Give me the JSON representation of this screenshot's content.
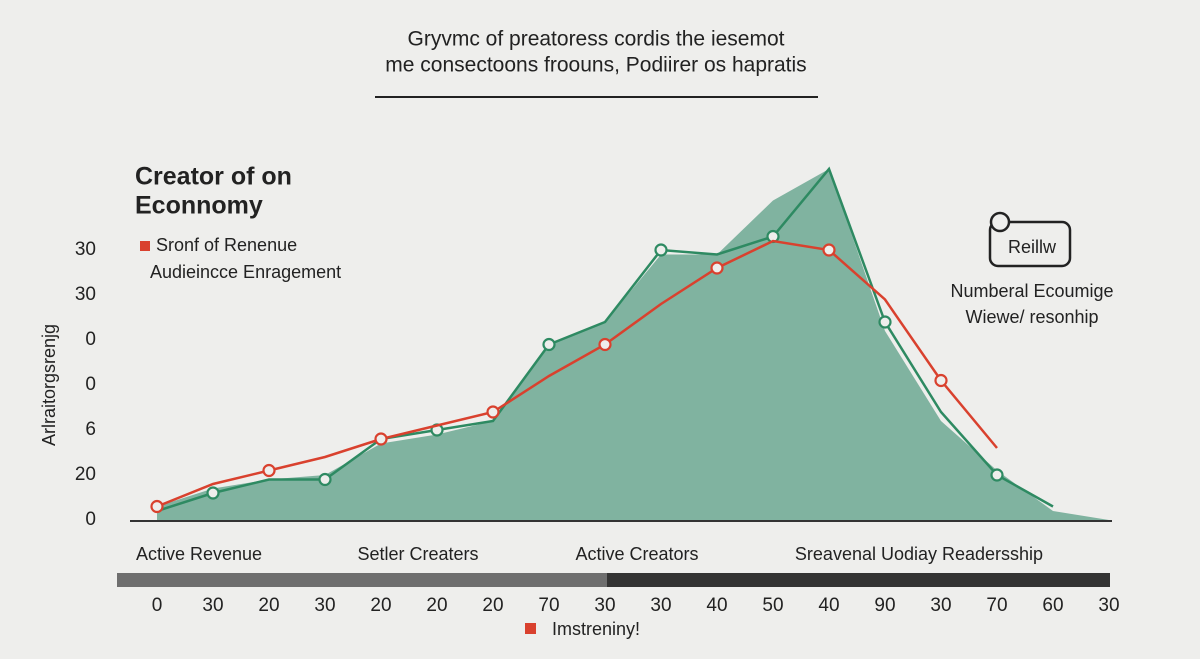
{
  "chart_data": {
    "type": "line-area",
    "subtitle": [
      "Gryvmc of preatoress cordis the iesemot",
      "me consectoons froouns, Podiirer os hapratis"
    ],
    "title": [
      "Creator of on",
      "Econnomy"
    ],
    "ylabel": "Arlraitorgsrenjg",
    "categories": [
      "0",
      "30",
      "20",
      "30",
      "20",
      "20",
      "20",
      "70",
      "30",
      "30",
      "40",
      "50",
      "40",
      "90",
      "30",
      "70",
      "60",
      "30"
    ],
    "area": {
      "color": "#80b3a0",
      "values": [
        0.3,
        0.7,
        0.9,
        1.0,
        1.7,
        1.9,
        2.2,
        3.9,
        4.4,
        5.9,
        5.9,
        7.1,
        7.8,
        4.2,
        2.2,
        1.1,
        0.2,
        0
      ]
    },
    "series": [
      {
        "name": "Sronf of Renenue",
        "color": "#d9412e",
        "values": [
          0.3,
          0.8,
          1.1,
          1.4,
          1.8,
          2.1,
          2.4,
          3.2,
          3.9,
          4.8,
          5.6,
          6.2,
          6.0,
          4.9,
          3.1,
          1.6,
          null,
          null
        ]
      },
      {
        "name": "Audieincce Enragement",
        "color": "#2e8a62",
        "values": [
          0.2,
          0.6,
          0.9,
          0.9,
          1.8,
          2.0,
          2.2,
          3.9,
          4.4,
          6.0,
          5.9,
          6.3,
          7.8,
          4.4,
          2.4,
          1.0,
          0.3,
          null
        ]
      }
    ],
    "ylim": [
      0,
      8
    ],
    "yticks": [
      0,
      {
        "value": 1,
        "label": "20"
      },
      {
        "value": 2,
        "label": "6"
      },
      {
        "value": 3,
        "label": "0"
      },
      {
        "value": 4,
        "label": "0"
      },
      {
        "value": 5,
        "label": "30"
      },
      {
        "value": 6,
        "label": "30"
      }
    ],
    "band_labels": [
      "Active Revenue",
      "Setler Creaters",
      "Active Creators",
      "Sreavenal Uodiay Readersship"
    ],
    "side_note": {
      "icon_label": "Reillw",
      "lines": [
        "Numberal Ecoumige",
        "Wiewe/ resonhip"
      ]
    },
    "footer_legend": {
      "name": "Imstreniny!",
      "color": "#d9412e"
    }
  }
}
